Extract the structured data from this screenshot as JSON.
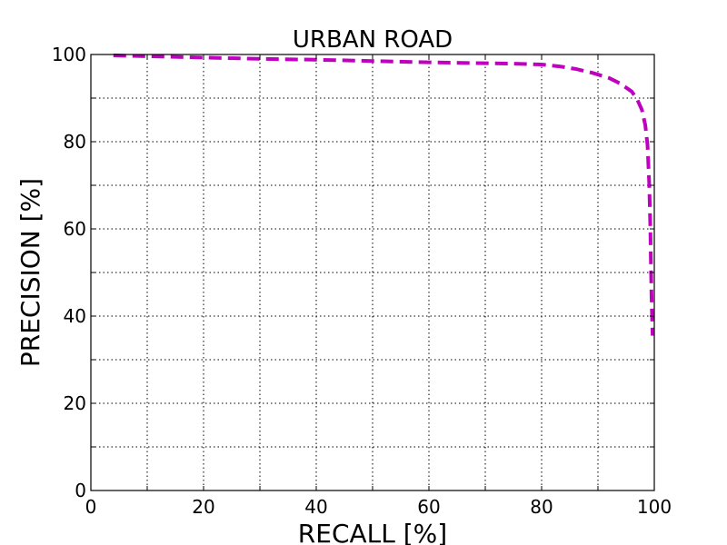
{
  "chart_data": {
    "type": "line",
    "title": "URBAN ROAD",
    "xlabel": "RECALL [%]",
    "ylabel": "PRECISION [%]",
    "xlim": [
      0,
      100
    ],
    "ylim": [
      0,
      100
    ],
    "xticks": [
      0,
      20,
      40,
      60,
      80,
      100
    ],
    "yticks": [
      0,
      20,
      40,
      60,
      80,
      100
    ],
    "minor_grid_step": 10,
    "grid": true,
    "series": [
      {
        "color": "#bf00bf",
        "linestyle": "dashed",
        "x": [
          4,
          10,
          20,
          30,
          40,
          50,
          60,
          70,
          75,
          80,
          83,
          86,
          89,
          92,
          94,
          96,
          97,
          97.8,
          98.4,
          98.8,
          99.1,
          99.3,
          99.4,
          99.5,
          99.6,
          99.7
        ],
        "y": [
          99.8,
          99.6,
          99.3,
          99.0,
          98.8,
          98.5,
          98.2,
          98.0,
          97.9,
          97.7,
          97.3,
          96.7,
          95.8,
          94.6,
          93.3,
          91.5,
          89.6,
          87.3,
          83.8,
          79.2,
          70.3,
          60.1,
          52.0,
          45.0,
          40.0,
          35.5
        ]
      }
    ]
  }
}
